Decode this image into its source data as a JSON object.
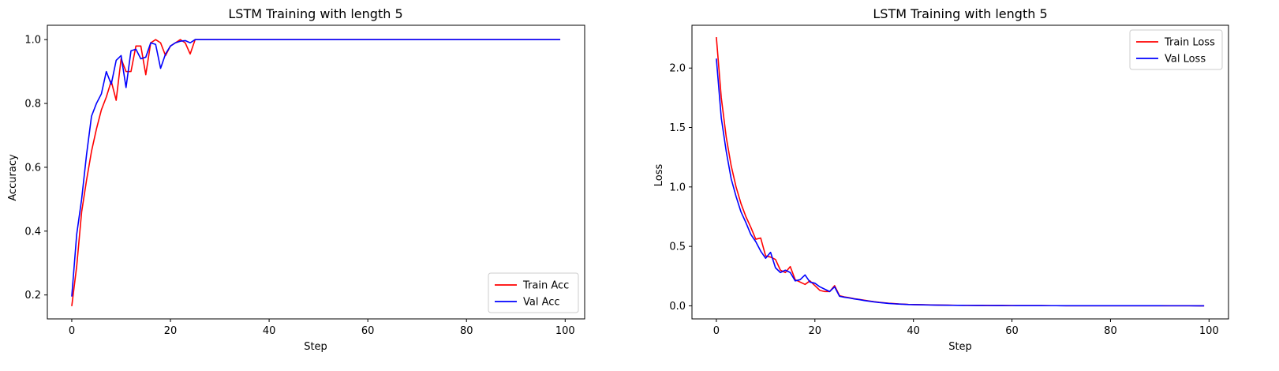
{
  "chart_data": [
    {
      "type": "line",
      "title": "LSTM Training with length 5",
      "xlabel": "Step",
      "ylabel": "Accuracy",
      "xlim": [
        -4.95,
        103.95
      ],
      "ylim": [
        0.125,
        1.045
      ],
      "xticks": [
        0,
        20,
        40,
        60,
        80,
        100
      ],
      "yticks": [
        0.2,
        0.4,
        0.6,
        0.8,
        1.0
      ],
      "xtick_labels": [
        "0",
        "20",
        "40",
        "60",
        "80",
        "100"
      ],
      "ytick_labels": [
        "0.2",
        "0.4",
        "0.6",
        "0.8",
        "1.0"
      ],
      "grid": false,
      "legend_position": "lower-right",
      "series": [
        {
          "name": "Train Acc",
          "color": "#ff0000",
          "x": [
            0,
            1,
            2,
            3,
            4,
            5,
            6,
            7,
            8,
            9,
            10,
            11,
            12,
            13,
            14,
            15,
            16,
            17,
            18,
            19,
            20,
            21,
            22,
            23,
            24,
            25,
            26,
            27,
            28,
            29,
            30,
            31,
            32,
            33,
            34,
            35,
            36,
            37,
            38,
            39,
            40,
            41,
            42,
            43,
            44,
            45,
            46,
            47,
            48,
            49,
            50,
            51,
            52,
            53,
            54,
            55,
            56,
            57,
            58,
            59,
            60,
            61,
            62,
            63,
            64,
            65,
            66,
            67,
            68,
            69,
            70,
            71,
            72,
            73,
            74,
            75,
            76,
            77,
            78,
            79,
            80,
            81,
            82,
            83,
            84,
            85,
            86,
            87,
            88,
            89,
            90,
            91,
            92,
            93,
            94,
            95,
            96,
            97,
            98,
            99
          ],
          "values": [
            0.165,
            0.29,
            0.46,
            0.56,
            0.65,
            0.72,
            0.78,
            0.82,
            0.87,
            0.81,
            0.94,
            0.9,
            0.9,
            0.98,
            0.98,
            0.89,
            0.99,
            1.0,
            0.99,
            0.95,
            0.98,
            0.99,
            1.0,
            0.99,
            0.955,
            1.0,
            1.0,
            1.0,
            1.0,
            1.0,
            1.0,
            1.0,
            1.0,
            1.0,
            1.0,
            1.0,
            1.0,
            1.0,
            1.0,
            1.0,
            1.0,
            1.0,
            1.0,
            1.0,
            1.0,
            1.0,
            1.0,
            1.0,
            1.0,
            1.0,
            1.0,
            1.0,
            1.0,
            1.0,
            1.0,
            1.0,
            1.0,
            1.0,
            1.0,
            1.0,
            1.0,
            1.0,
            1.0,
            1.0,
            1.0,
            1.0,
            1.0,
            1.0,
            1.0,
            1.0,
            1.0,
            1.0,
            1.0,
            1.0,
            1.0,
            1.0,
            1.0,
            1.0,
            1.0,
            1.0,
            1.0,
            1.0,
            1.0,
            1.0,
            1.0,
            1.0,
            1.0,
            1.0,
            1.0,
            1.0,
            1.0,
            1.0,
            1.0,
            1.0,
            1.0,
            1.0,
            1.0,
            1.0,
            1.0,
            1.0
          ]
        },
        {
          "name": "Val Acc",
          "color": "#0000ff",
          "x": [
            0,
            1,
            2,
            3,
            4,
            5,
            6,
            7,
            8,
            9,
            10,
            11,
            12,
            13,
            14,
            15,
            16,
            17,
            18,
            19,
            20,
            21,
            22,
            23,
            24,
            25,
            26,
            27,
            28,
            29,
            30,
            31,
            32,
            33,
            34,
            35,
            36,
            37,
            38,
            39,
            40,
            41,
            42,
            43,
            44,
            45,
            46,
            47,
            48,
            49,
            50,
            51,
            52,
            53,
            54,
            55,
            56,
            57,
            58,
            59,
            60,
            61,
            62,
            63,
            64,
            65,
            66,
            67,
            68,
            69,
            70,
            71,
            72,
            73,
            74,
            75,
            76,
            77,
            78,
            79,
            80,
            81,
            82,
            83,
            84,
            85,
            86,
            87,
            88,
            89,
            90,
            91,
            92,
            93,
            94,
            95,
            96,
            97,
            98,
            99
          ],
          "values": [
            0.195,
            0.39,
            0.5,
            0.64,
            0.76,
            0.8,
            0.83,
            0.9,
            0.86,
            0.935,
            0.95,
            0.85,
            0.965,
            0.97,
            0.94,
            0.945,
            0.99,
            0.985,
            0.91,
            0.955,
            0.98,
            0.99,
            0.995,
            0.997,
            0.99,
            1.0,
            1.0,
            1.0,
            1.0,
            1.0,
            1.0,
            1.0,
            1.0,
            1.0,
            1.0,
            1.0,
            1.0,
            1.0,
            1.0,
            1.0,
            1.0,
            1.0,
            1.0,
            1.0,
            1.0,
            1.0,
            1.0,
            1.0,
            1.0,
            1.0,
            1.0,
            1.0,
            1.0,
            1.0,
            1.0,
            1.0,
            1.0,
            1.0,
            1.0,
            1.0,
            1.0,
            1.0,
            1.0,
            1.0,
            1.0,
            1.0,
            1.0,
            1.0,
            1.0,
            1.0,
            1.0,
            1.0,
            1.0,
            1.0,
            1.0,
            1.0,
            1.0,
            1.0,
            1.0,
            1.0,
            1.0,
            1.0,
            1.0,
            1.0,
            1.0,
            1.0,
            1.0,
            1.0,
            1.0,
            1.0,
            1.0,
            1.0,
            1.0,
            1.0,
            1.0,
            1.0,
            1.0,
            1.0,
            1.0,
            1.0
          ]
        }
      ]
    },
    {
      "type": "line",
      "title": "LSTM Training with length 5",
      "xlabel": "Step",
      "ylabel": "Loss",
      "xlim": [
        -4.95,
        103.95
      ],
      "ylim": [
        -0.11,
        2.36
      ],
      "xticks": [
        0,
        20,
        40,
        60,
        80,
        100
      ],
      "yticks": [
        0.0,
        0.5,
        1.0,
        1.5,
        2.0
      ],
      "xtick_labels": [
        "0",
        "20",
        "40",
        "60",
        "80",
        "100"
      ],
      "ytick_labels": [
        "0.0",
        "0.5",
        "1.0",
        "1.5",
        "2.0"
      ],
      "grid": false,
      "legend_position": "upper-right",
      "series": [
        {
          "name": "Train Loss",
          "color": "#ff0000",
          "x": [
            0,
            1,
            2,
            3,
            4,
            5,
            6,
            7,
            8,
            9,
            10,
            11,
            12,
            13,
            14,
            15,
            16,
            17,
            18,
            19,
            20,
            21,
            22,
            23,
            24,
            25,
            26,
            27,
            28,
            29,
            30,
            31,
            32,
            33,
            34,
            35,
            36,
            37,
            38,
            39,
            40,
            41,
            42,
            43,
            44,
            45,
            46,
            47,
            48,
            49,
            50,
            51,
            52,
            53,
            54,
            55,
            56,
            57,
            58,
            59,
            60,
            61,
            62,
            63,
            64,
            65,
            66,
            67,
            68,
            69,
            70,
            71,
            72,
            73,
            74,
            75,
            76,
            77,
            78,
            79,
            80,
            81,
            82,
            83,
            84,
            85,
            86,
            87,
            88,
            89,
            90,
            91,
            92,
            93,
            94,
            95,
            96,
            97,
            98,
            99
          ],
          "values": [
            2.26,
            1.75,
            1.42,
            1.18,
            1.0,
            0.86,
            0.75,
            0.66,
            0.56,
            0.57,
            0.42,
            0.41,
            0.39,
            0.3,
            0.28,
            0.33,
            0.22,
            0.2,
            0.18,
            0.21,
            0.17,
            0.13,
            0.12,
            0.12,
            0.17,
            0.085,
            0.075,
            0.068,
            0.06,
            0.054,
            0.047,
            0.041,
            0.035,
            0.03,
            0.026,
            0.022,
            0.019,
            0.016,
            0.014,
            0.012,
            0.011,
            0.01,
            0.009,
            0.008,
            0.007,
            0.0065,
            0.006,
            0.0055,
            0.005,
            0.0046,
            0.0043,
            0.004,
            0.0037,
            0.0034,
            0.0032,
            0.003,
            0.0028,
            0.0026,
            0.0024,
            0.0023,
            0.0021,
            0.002,
            0.0019,
            0.0018,
            0.0017,
            0.0016,
            0.0015,
            0.0014,
            0.0013,
            0.0013,
            0.0012,
            0.0011,
            0.0011,
            0.001,
            0.001,
            0.0009,
            0.0009,
            0.0008,
            0.0008,
            0.0008,
            0.0007,
            0.0007,
            0.0007,
            0.0006,
            0.0006,
            0.0006,
            0.0006,
            0.0005,
            0.0005,
            0.0005,
            0.0005,
            0.0005,
            0.0004,
            0.0004,
            0.0004,
            0.0004,
            0.0004,
            0.0004,
            0.0003,
            0.0003
          ]
        },
        {
          "name": "Val Loss",
          "color": "#0000ff",
          "x": [
            0,
            1,
            2,
            3,
            4,
            5,
            6,
            7,
            8,
            9,
            10,
            11,
            12,
            13,
            14,
            15,
            16,
            17,
            18,
            19,
            20,
            21,
            22,
            23,
            24,
            25,
            26,
            27,
            28,
            29,
            30,
            31,
            32,
            33,
            34,
            35,
            36,
            37,
            38,
            39,
            40,
            41,
            42,
            43,
            44,
            45,
            46,
            47,
            48,
            49,
            50,
            51,
            52,
            53,
            54,
            55,
            56,
            57,
            58,
            59,
            60,
            61,
            62,
            63,
            64,
            65,
            66,
            67,
            68,
            69,
            70,
            71,
            72,
            73,
            74,
            75,
            76,
            77,
            78,
            79,
            80,
            81,
            82,
            83,
            84,
            85,
            86,
            87,
            88,
            89,
            90,
            91,
            92,
            93,
            94,
            95,
            96,
            97,
            98,
            99
          ],
          "values": [
            2.08,
            1.58,
            1.3,
            1.07,
            0.92,
            0.79,
            0.7,
            0.6,
            0.54,
            0.46,
            0.4,
            0.45,
            0.32,
            0.28,
            0.3,
            0.28,
            0.21,
            0.22,
            0.26,
            0.2,
            0.19,
            0.16,
            0.14,
            0.12,
            0.16,
            0.08,
            0.072,
            0.066,
            0.058,
            0.052,
            0.045,
            0.039,
            0.033,
            0.028,
            0.024,
            0.02,
            0.017,
            0.015,
            0.013,
            0.011,
            0.01,
            0.009,
            0.008,
            0.007,
            0.0065,
            0.006,
            0.0055,
            0.005,
            0.0046,
            0.0043,
            0.004,
            0.0037,
            0.0034,
            0.0032,
            0.003,
            0.0028,
            0.0026,
            0.0024,
            0.0023,
            0.0021,
            0.002,
            0.0019,
            0.0018,
            0.0017,
            0.0016,
            0.0015,
            0.0014,
            0.0013,
            0.0013,
            0.0012,
            0.0011,
            0.0011,
            0.001,
            0.001,
            0.0009,
            0.0009,
            0.0008,
            0.0008,
            0.0008,
            0.0007,
            0.0007,
            0.0007,
            0.0006,
            0.0006,
            0.0006,
            0.0006,
            0.0005,
            0.0005,
            0.0005,
            0.0005,
            0.0005,
            0.0004,
            0.0004,
            0.0004,
            0.0004,
            0.0004,
            0.0004,
            0.0003,
            0.0003,
            0.0003
          ]
        }
      ]
    }
  ]
}
